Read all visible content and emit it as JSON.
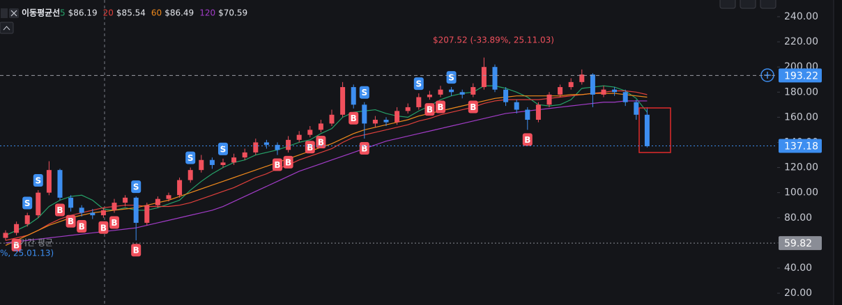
{
  "chart_data": {
    "type": "candlestick",
    "legend_title": "이동평균선",
    "ylim": [
      10.6,
      253.3
    ],
    "yticks": [
      {
        "value": 240,
        "label": "240.00"
      },
      {
        "value": 220,
        "label": "220.00"
      },
      {
        "value": 200,
        "label": "200.00"
      },
      {
        "value": 180,
        "label": "180.00"
      },
      {
        "value": 160,
        "label": "160.00"
      },
      {
        "value": 140,
        "label": "140.00"
      },
      {
        "value": 120,
        "label": "120.00"
      },
      {
        "value": 100,
        "label": "100.00"
      },
      {
        "value": 80,
        "label": "80.00"
      },
      {
        "value": 60,
        "label": "60.00"
      },
      {
        "value": 40,
        "label": "40.00"
      },
      {
        "value": 20,
        "label": "20.00"
      }
    ],
    "up_color": "#f0505c",
    "down_color": "#3d8ef0",
    "open": [
      64,
      68,
      75,
      82,
      100,
      118,
      96,
      88,
      84,
      82,
      86,
      92,
      96,
      76,
      90,
      95,
      98,
      110,
      118,
      126,
      122,
      124,
      128,
      132,
      140,
      138,
      134,
      142,
      146,
      150,
      155,
      162,
      184,
      170,
      155,
      158,
      156,
      165,
      168,
      176,
      178,
      182,
      180,
      178,
      184,
      200,
      182,
      172,
      166,
      158,
      170,
      178,
      184,
      188,
      194,
      178,
      182,
      180,
      172,
      162
    ],
    "high": [
      70,
      77,
      84,
      102,
      125,
      119,
      98,
      90,
      87,
      88,
      95,
      98,
      97,
      92,
      97,
      100,
      112,
      120,
      130,
      128,
      127,
      131,
      135,
      143,
      142,
      140,
      145,
      149,
      153,
      158,
      166,
      188,
      186,
      172,
      161,
      160,
      168,
      171,
      179,
      181,
      185,
      184,
      182,
      187,
      207.5,
      202,
      184,
      174,
      168,
      172,
      180,
      186,
      191,
      198,
      195,
      185,
      184,
      182,
      174,
      168
    ],
    "low": [
      62,
      66,
      73,
      80,
      98,
      94,
      85,
      81,
      79,
      80,
      84,
      89,
      62,
      74,
      88,
      93,
      96,
      108,
      116,
      119,
      120,
      122,
      126,
      130,
      135,
      130,
      132,
      140,
      144,
      148,
      153,
      160,
      167,
      143,
      152,
      153,
      154,
      163,
      166,
      174,
      176,
      177,
      175,
      176,
      182,
      180,
      169,
      163,
      150,
      156,
      168,
      176,
      182,
      186,
      168,
      176,
      177,
      169,
      158,
      136
    ],
    "close": [
      68,
      75,
      82,
      100,
      118,
      96,
      88,
      84,
      82,
      86,
      92,
      96,
      76,
      90,
      95,
      98,
      110,
      118,
      126,
      122,
      124,
      128,
      132,
      140,
      138,
      134,
      142,
      146,
      150,
      155,
      162,
      184,
      170,
      155,
      158,
      156,
      165,
      168,
      176,
      178,
      182,
      180,
      178,
      184,
      200,
      182,
      172,
      166,
      158,
      170,
      178,
      184,
      188,
      194,
      178,
      182,
      180,
      172,
      162,
      137
    ],
    "series": [
      {
        "name": "5",
        "color": "#26a269",
        "legend_value": "$86.19",
        "values": [
          66,
          70,
          74,
          80,
          89,
          94,
          97,
          98,
          94,
          87,
          86,
          88,
          86,
          86,
          88,
          91,
          94,
          102,
          109,
          115,
          120,
          124,
          126,
          130,
          132,
          134,
          137,
          140,
          142,
          147,
          151,
          160,
          164,
          165,
          166,
          163,
          161,
          160,
          165,
          169,
          174,
          177,
          179,
          180,
          185,
          185,
          183,
          180,
          176,
          170,
          169,
          170,
          174,
          183,
          184,
          185,
          184,
          181,
          175,
          164
        ]
      },
      {
        "name": "20",
        "color": "#e0403c",
        "legend_value": "$85.54",
        "values": [
          62,
          64,
          66,
          70,
          75,
          79,
          82,
          84,
          86,
          88,
          89,
          90,
          90,
          89,
          89,
          89,
          90,
          92,
          95,
          98,
          101,
          104,
          108,
          112,
          115,
          119,
          122,
          126,
          129,
          132,
          135,
          140,
          144,
          146,
          148,
          150,
          152,
          154,
          157,
          159,
          162,
          164,
          166,
          168,
          171,
          173,
          174,
          174,
          174,
          174,
          175,
          176,
          177,
          178,
          179,
          180,
          181,
          181,
          180,
          178
        ]
      },
      {
        "name": "60",
        "color": "#f08a1c",
        "legend_value": "$86.49",
        "values": [
          58,
          62,
          66,
          70,
          74,
          77,
          80,
          82,
          84,
          85,
          86,
          87,
          88,
          90,
          92,
          94,
          97,
          100,
          103,
          106,
          109,
          112,
          115,
          118,
          121,
          124,
          127,
          130,
          133,
          136,
          139,
          143,
          147,
          150,
          152,
          154,
          156,
          158,
          161,
          163,
          165,
          167,
          169,
          171,
          173,
          175,
          176,
          177,
          177,
          177,
          177,
          177,
          178,
          178,
          179,
          179,
          179,
          178,
          177,
          176
        ]
      },
      {
        "name": "120",
        "color": "#a23cc8",
        "legend_value": "$70.59",
        "values": [
          60,
          61,
          62,
          63,
          64,
          65,
          66,
          67,
          68,
          69,
          70,
          71,
          72,
          74,
          76,
          78,
          80,
          82,
          84,
          86,
          89,
          93,
          97,
          101,
          105,
          109,
          113,
          117,
          120,
          123,
          126,
          129,
          132,
          135,
          138,
          141,
          143,
          145,
          147,
          149,
          151,
          153,
          155,
          157,
          159,
          161,
          163,
          164,
          165,
          166,
          167,
          168,
          169,
          170,
          171,
          172,
          172,
          173,
          173,
          173
        ]
      }
    ],
    "signals": [
      {
        "label": "S",
        "index": 2
      },
      {
        "label": "S",
        "index": 3
      },
      {
        "label": "S",
        "index": 12
      },
      {
        "label": "S",
        "index": 17
      },
      {
        "label": "S",
        "index": 20
      },
      {
        "label": "S",
        "index": 33
      },
      {
        "label": "S",
        "index": 38
      },
      {
        "label": "S",
        "index": 41
      },
      {
        "label": "B",
        "index": 1
      },
      {
        "label": "B",
        "index": 5
      },
      {
        "label": "B",
        "index": 6
      },
      {
        "label": "B",
        "index": 7
      },
      {
        "label": "B",
        "index": 9
      },
      {
        "label": "B",
        "index": 10
      },
      {
        "label": "B",
        "index": 12
      },
      {
        "label": "B",
        "index": 25
      },
      {
        "label": "B",
        "index": 26
      },
      {
        "label": "B",
        "index": 28
      },
      {
        "label": "B",
        "index": 29
      },
      {
        "label": "B",
        "index": 32
      },
      {
        "label": "B",
        "index": 33
      },
      {
        "label": "B",
        "index": 39
      },
      {
        "label": "B",
        "index": 40
      },
      {
        "label": "B",
        "index": 43
      },
      {
        "label": "B",
        "index": 48
      }
    ],
    "price_lines": [
      {
        "value": 193.22,
        "color": "#3d8ef0",
        "style": "dashed-white"
      },
      {
        "value": 137.18,
        "color": "#3d8ef0",
        "style": "dotted-blue"
      },
      {
        "value": 59.82,
        "color": "#8a8d96",
        "style": "dotted-gray"
      }
    ],
    "annotations": [
      "$207.52 (-33.89%, 25.11.03)",
      "%, 25.01.13)",
      "기간 평균"
    ]
  }
}
